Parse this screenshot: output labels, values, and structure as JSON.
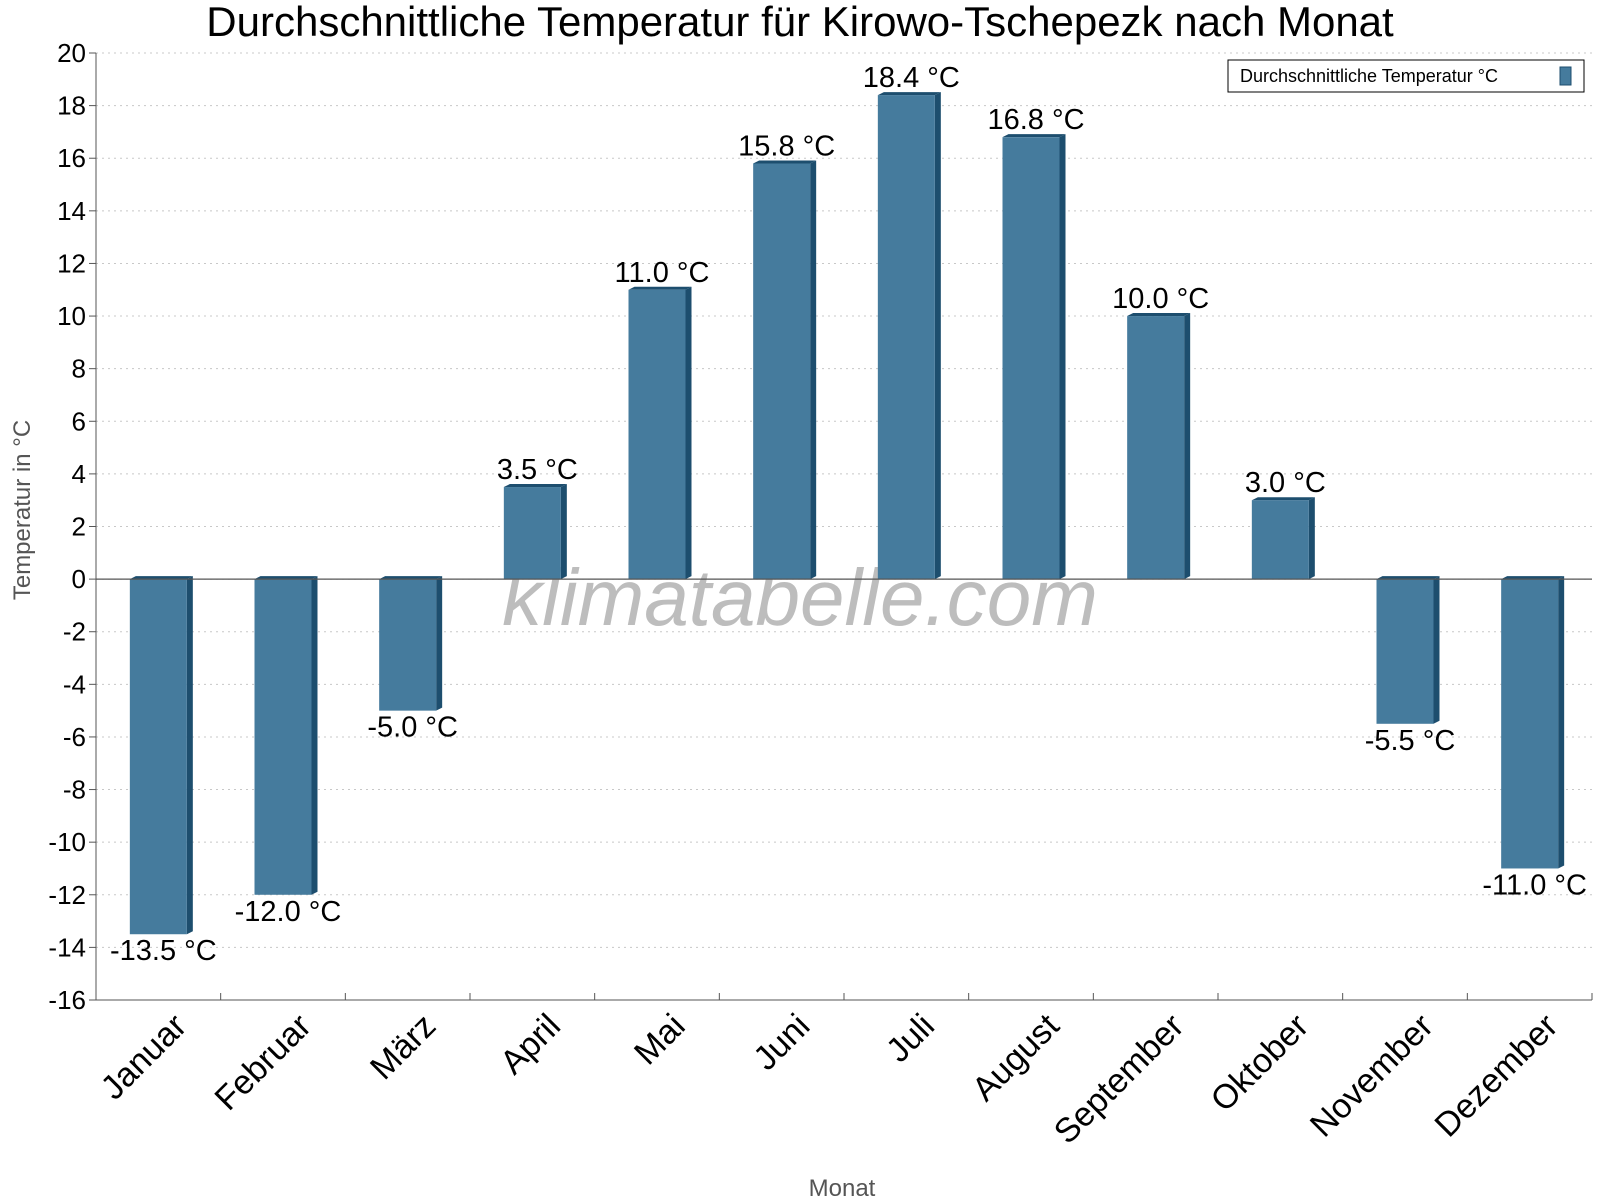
{
  "chart_data": {
    "type": "bar",
    "title": "Durchschnittliche Temperatur für Kirowo-Tschepezk nach Monat",
    "xlabel": "Monat",
    "ylabel": "Temperatur in °C",
    "ylim": [
      -16,
      20
    ],
    "ytick_step": 2,
    "grid": true,
    "legend_position": "top-right",
    "watermark": "klimatabelle.com",
    "categories": [
      "Januar",
      "Februar",
      "März",
      "April",
      "Mai",
      "Juni",
      "Juli",
      "August",
      "September",
      "Oktober",
      "November",
      "Dezember"
    ],
    "series": [
      {
        "name": "Durchschnittliche Temperatur °C",
        "values": [
          -13.5,
          -12.0,
          -5.0,
          3.5,
          11.0,
          15.8,
          18.4,
          16.8,
          10.0,
          3.0,
          -5.5,
          -11.0
        ],
        "labels": [
          "-13.5 °C",
          "-12.0 °C",
          "-5.0 °C",
          "3.5 °C",
          "11.0 °C",
          "15.8 °C",
          "18.4 °C",
          "16.8 °C",
          "10.0 °C",
          "3.0 °C",
          "-5.5 °C",
          "-11.0 °C"
        ]
      }
    ],
    "colors": {
      "bar": "#457b9d",
      "bar_side": "#1d4e6e",
      "grid": "#c8c8c8",
      "axis": "#555555"
    }
  }
}
